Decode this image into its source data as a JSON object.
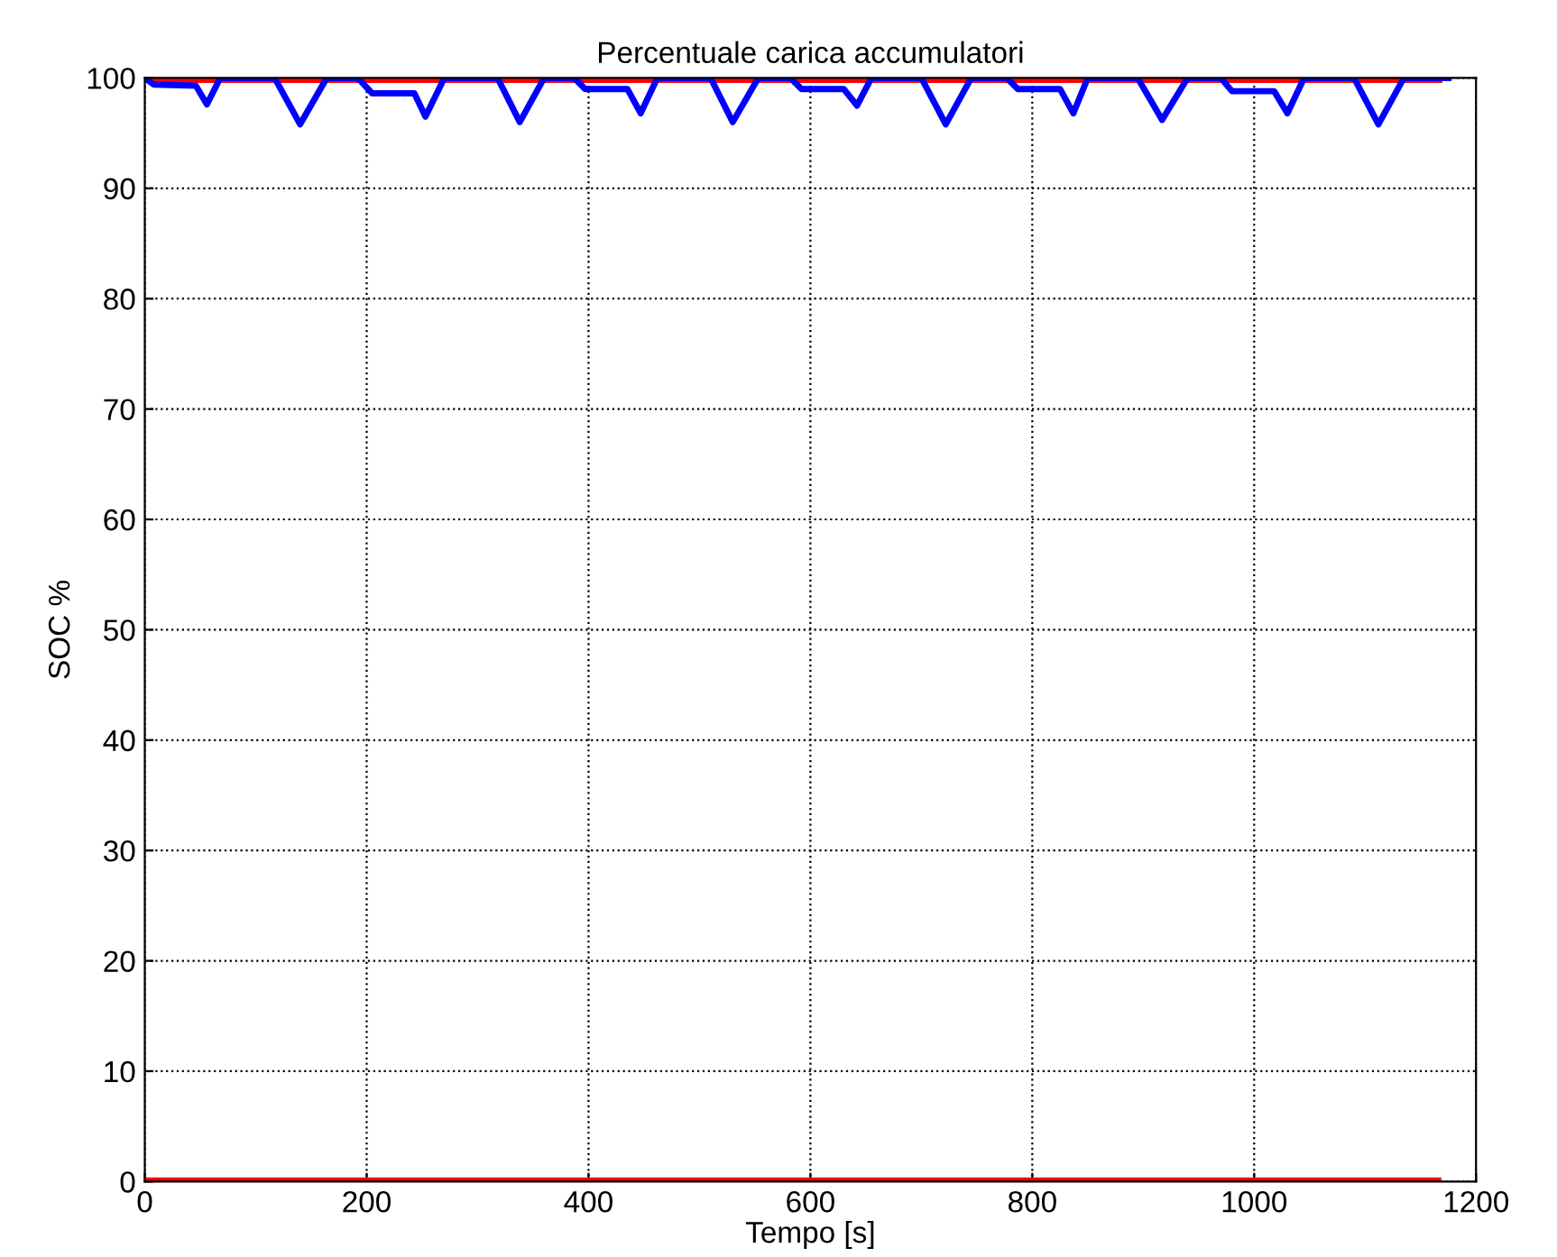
{
  "chart_data": {
    "type": "line",
    "title": "Percentuale carica accumulatori",
    "xlabel": "Tempo [s]",
    "ylabel": "SOC %",
    "xlim": [
      0,
      1200
    ],
    "xticks": [
      0,
      200,
      400,
      600,
      800,
      1000,
      1200
    ],
    "ylim": [
      0,
      100
    ],
    "yticks": [
      0,
      10,
      20,
      30,
      40,
      50,
      60,
      70,
      80,
      90,
      100
    ],
    "grid": true,
    "line_style": "solid",
    "marker": "none",
    "series": [
      {
        "color": "#ff0000",
        "x": [
          0,
          1165
        ],
        "values": [
          100,
          100
        ]
      },
      {
        "color": "#ff0000",
        "x": [
          0,
          1165
        ],
        "values": [
          0,
          0
        ]
      },
      {
        "color": "#0000ff",
        "x": [
          0,
          8,
          46,
          56,
          68,
          117,
          140,
          164,
          192,
          205,
          243,
          253,
          270,
          318,
          338,
          360,
          387,
          397,
          435,
          447,
          462,
          510,
          530,
          553,
          582,
          592,
          630,
          642,
          655,
          700,
          722,
          745,
          777,
          787,
          825,
          837,
          850,
          895,
          917,
          940,
          970,
          980,
          1018,
          1030,
          1045,
          1090,
          1112,
          1135,
          1175
        ],
        "values": [
          100,
          99.4,
          99.3,
          97.6,
          100,
          100,
          95.8,
          100,
          100,
          98.6,
          98.6,
          96.5,
          100,
          100,
          96,
          100,
          100,
          99,
          99,
          96.8,
          100,
          100,
          96,
          100,
          100,
          99,
          99,
          97.5,
          100,
          100,
          95.8,
          100,
          100,
          99,
          99,
          96.8,
          100,
          100,
          96.2,
          100,
          100,
          98.8,
          98.8,
          96.8,
          100,
          100,
          95.8,
          100,
          100
        ]
      }
    ]
  }
}
